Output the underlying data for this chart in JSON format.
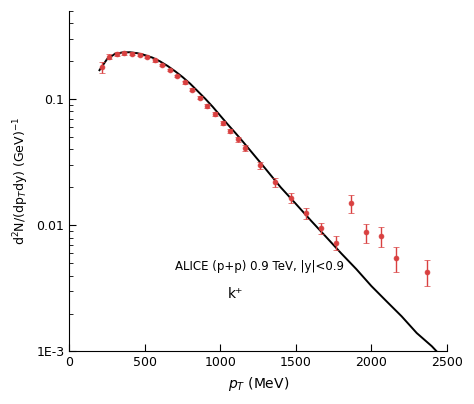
{
  "annotation_line1": "ALICE (p+p) 0.9 TeV, |y|<0.9",
  "annotation_line2": "k⁺",
  "xlim": [
    0,
    2500
  ],
  "ylim_log": [
    0.001,
    0.5
  ],
  "data_color": "#d94040",
  "line_color": "#000000",
  "data_x": [
    215,
    265,
    315,
    365,
    415,
    465,
    515,
    565,
    615,
    665,
    715,
    765,
    815,
    865,
    915,
    965,
    1015,
    1065,
    1115,
    1165,
    1265,
    1365,
    1465,
    1565,
    1665,
    1765,
    1865,
    1965,
    2065,
    2165,
    2365
  ],
  "data_y": [
    0.18,
    0.218,
    0.228,
    0.232,
    0.23,
    0.225,
    0.216,
    0.204,
    0.188,
    0.17,
    0.153,
    0.136,
    0.119,
    0.103,
    0.089,
    0.076,
    0.065,
    0.056,
    0.048,
    0.041,
    0.03,
    0.022,
    0.0165,
    0.0125,
    0.0095,
    0.0073,
    0.015,
    0.0088,
    0.0082,
    0.0055,
    0.0043
  ],
  "data_yerr": [
    0.018,
    0.01,
    0.008,
    0.007,
    0.006,
    0.006,
    0.005,
    0.005,
    0.004,
    0.004,
    0.004,
    0.004,
    0.003,
    0.003,
    0.003,
    0.003,
    0.002,
    0.002,
    0.002,
    0.002,
    0.002,
    0.0018,
    0.0015,
    0.0012,
    0.001,
    0.0009,
    0.0025,
    0.0015,
    0.0015,
    0.0012,
    0.001
  ],
  "fit_x": [
    200,
    250,
    300,
    350,
    400,
    450,
    500,
    550,
    600,
    650,
    700,
    750,
    800,
    850,
    900,
    950,
    1000,
    1050,
    1100,
    1150,
    1200,
    1300,
    1400,
    1500,
    1600,
    1700,
    1800,
    1900,
    2000,
    2100,
    2200,
    2300,
    2400,
    2500
  ],
  "fit_y": [
    0.17,
    0.208,
    0.228,
    0.235,
    0.236,
    0.232,
    0.224,
    0.214,
    0.2,
    0.184,
    0.167,
    0.15,
    0.133,
    0.116,
    0.101,
    0.087,
    0.074,
    0.063,
    0.054,
    0.046,
    0.039,
    0.028,
    0.02,
    0.0148,
    0.0109,
    0.0081,
    0.006,
    0.0045,
    0.0033,
    0.0025,
    0.0019,
    0.0014,
    0.0011,
    0.00082
  ]
}
